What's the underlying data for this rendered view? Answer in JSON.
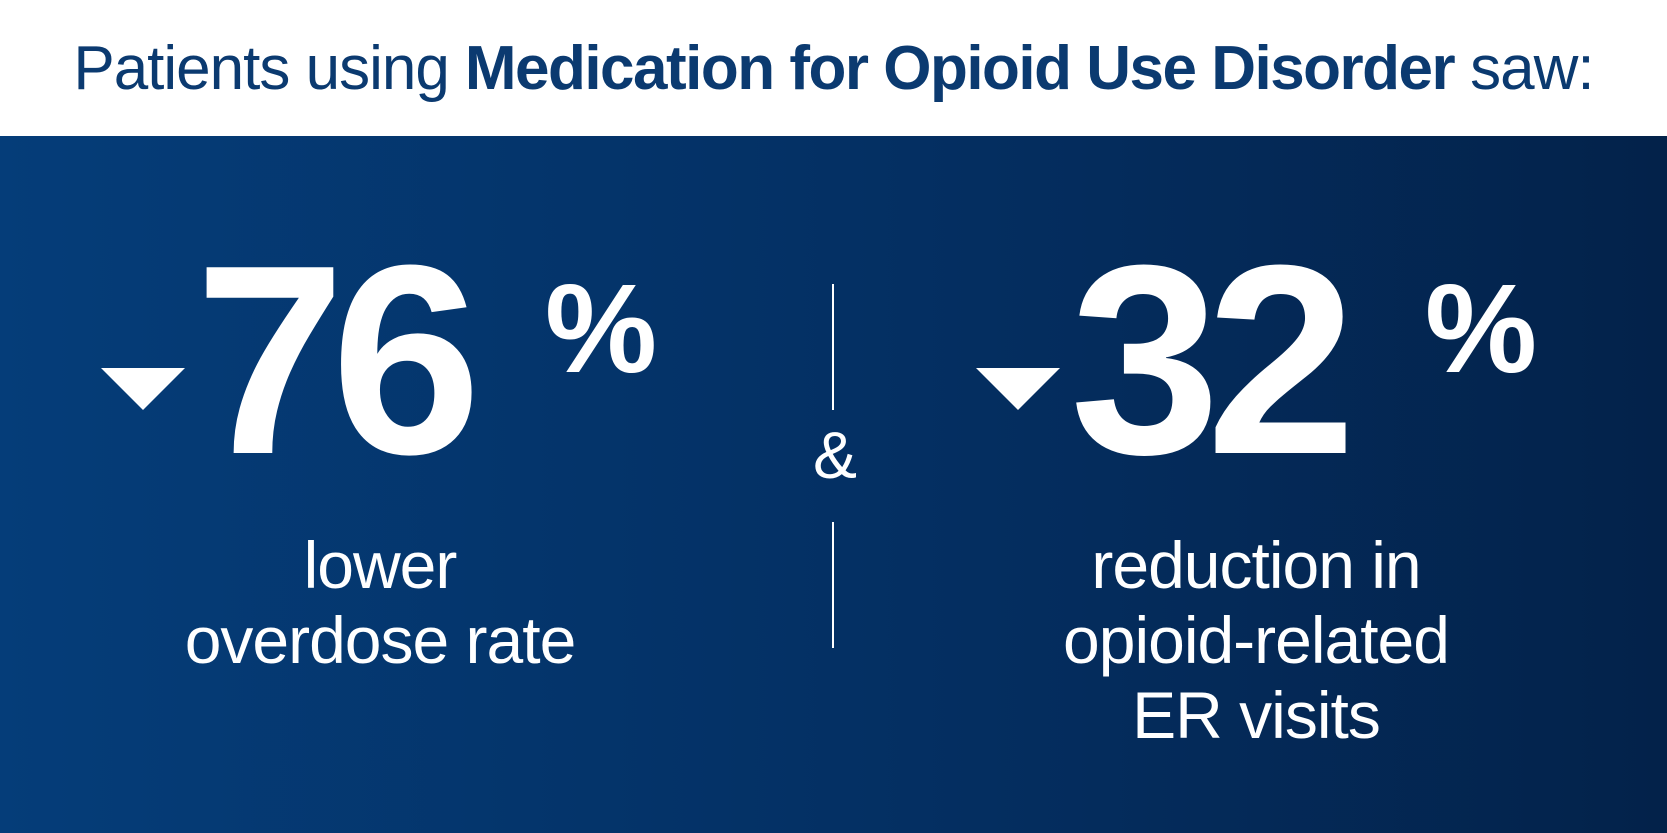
{
  "header": {
    "prefix": "Patients using",
    "highlight": "Medication for Opioid Use Disorder",
    "suffix": "saw:"
  },
  "stats": [
    {
      "value": "76",
      "unit": "%",
      "arrow_icon": "down-triangle-icon",
      "caption_lines": [
        "lower",
        "overdose rate"
      ]
    },
    {
      "value": "32",
      "unit": "%",
      "arrow_icon": "down-triangle-icon",
      "caption_lines": [
        "reduction in",
        "opioid-related",
        "ER visits"
      ]
    }
  ],
  "connector": "&",
  "colors": {
    "header_text": "#0b3a70",
    "panel_start": "#053d79",
    "panel_end": "#03224a",
    "stat_text": "#ffffff"
  }
}
